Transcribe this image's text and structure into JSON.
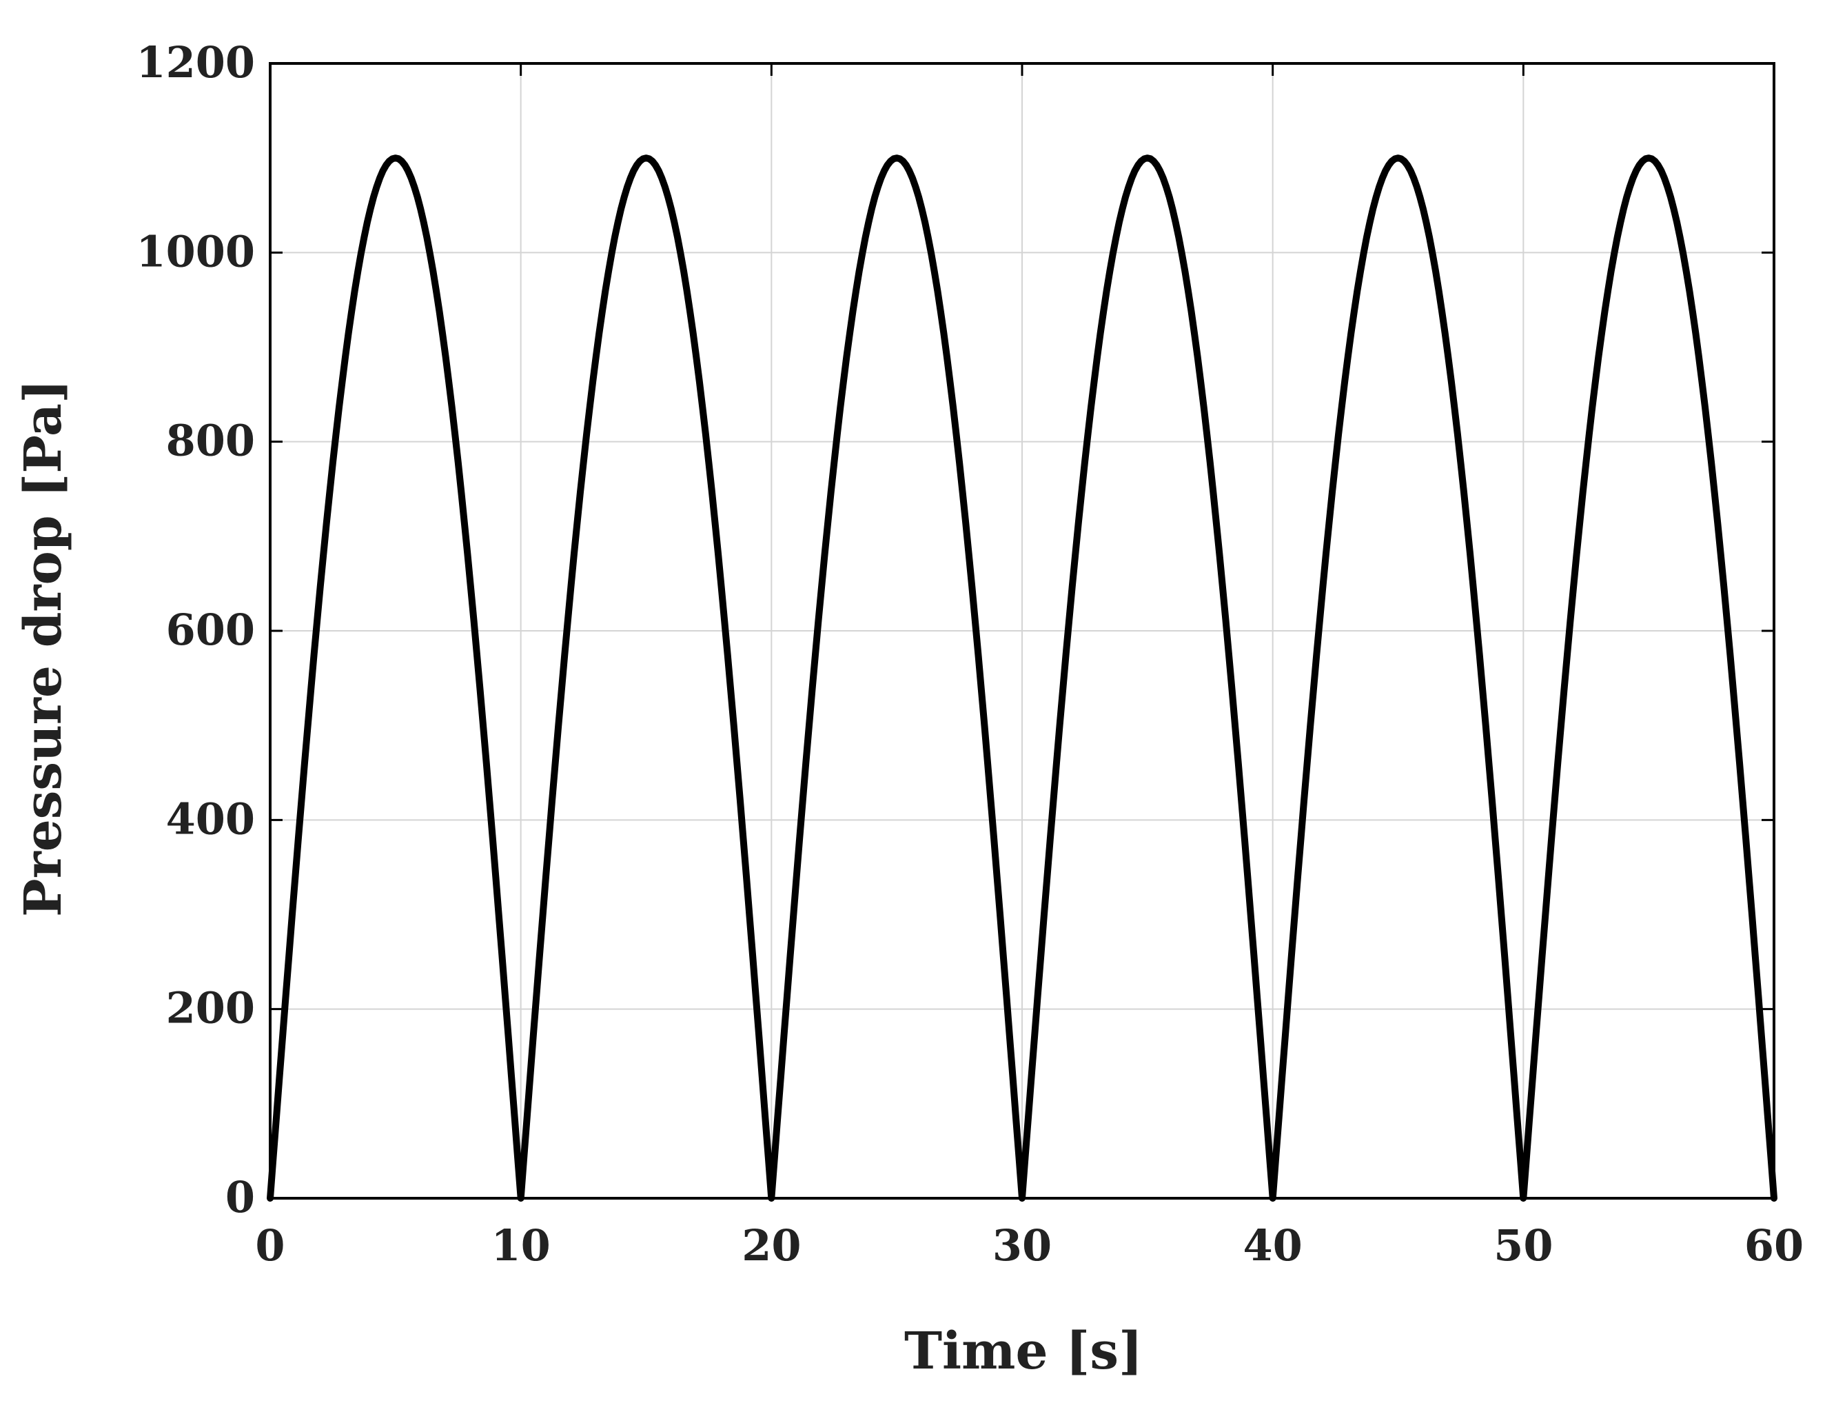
{
  "chart_data": {
    "type": "line",
    "title": "",
    "xlabel": "Time [s]",
    "ylabel": "Pressure drop [Pa]",
    "xlim": [
      0,
      60
    ],
    "ylim": [
      0,
      1200
    ],
    "xticks": [
      0,
      10,
      20,
      30,
      40,
      50,
      60
    ],
    "yticks": [
      0,
      200,
      400,
      600,
      800,
      1000,
      1200
    ],
    "grid": true,
    "legend": "none",
    "colors": {
      "line": "#000000",
      "grid": "#d4d4d4",
      "text": "#222222"
    },
    "series": [
      {
        "name": "Pressure drop",
        "x": [
          0,
          1,
          2,
          3,
          4,
          5,
          6,
          7,
          8,
          9,
          10,
          11,
          12,
          13,
          14,
          15,
          16,
          17,
          18,
          19,
          20,
          21,
          22,
          23,
          24,
          25,
          26,
          27,
          28,
          29,
          30,
          31,
          32,
          33,
          34,
          35,
          36,
          37,
          38,
          39,
          40,
          41,
          42,
          43,
          44,
          45,
          46,
          47,
          48,
          49,
          50,
          51,
          52,
          53,
          54,
          55,
          56,
          57,
          58,
          59,
          60
        ],
        "y": [
          0,
          340,
          647,
          890,
          1046,
          1100,
          1046,
          890,
          647,
          340,
          0,
          340,
          647,
          890,
          1046,
          1100,
          1046,
          890,
          647,
          340,
          0,
          340,
          647,
          890,
          1046,
          1100,
          1046,
          890,
          647,
          340,
          0,
          340,
          647,
          890,
          1046,
          1100,
          1046,
          890,
          647,
          340,
          0,
          340,
          647,
          890,
          1046,
          1100,
          1046,
          890,
          647,
          340,
          0,
          340,
          647,
          890,
          1046,
          1100,
          1046,
          890,
          647,
          340,
          0
        ]
      }
    ]
  }
}
